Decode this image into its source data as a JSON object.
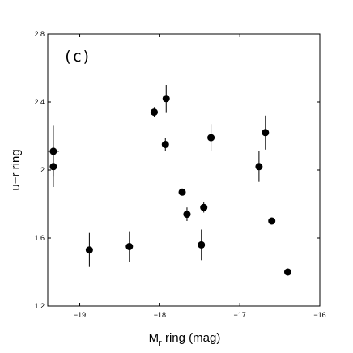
{
  "chart_data": {
    "type": "scatter",
    "panel_label": "(c)",
    "xlabel_main": "M",
    "xlabel_sub": "r",
    "xlabel_rest": " ring (mag)",
    "ylabel": "u−r ring",
    "xlim": [
      -19.4,
      -16
    ],
    "ylim": [
      1.2,
      2.8
    ],
    "x_ticks": [
      -19,
      -18,
      -17,
      -16
    ],
    "x_tick_labels": [
      "−19",
      "−18",
      "−17",
      "−16"
    ],
    "y_ticks": [
      1.2,
      1.6,
      2.0,
      2.4,
      2.8
    ],
    "y_tick_labels": [
      "1.2",
      "1.6",
      "2",
      "2.4",
      "2.8"
    ],
    "grid": false,
    "marker_color": "#000000",
    "points": [
      {
        "x": -19.33,
        "y": 2.11,
        "yerr": 0.15,
        "xerr": 0.07
      },
      {
        "x": -19.33,
        "y": 2.02,
        "yerr": 0.12,
        "xerr": 0.0
      },
      {
        "x": -18.88,
        "y": 1.53,
        "yerr": 0.1,
        "xerr": 0.0
      },
      {
        "x": -18.38,
        "y": 1.55,
        "yerr": 0.09,
        "xerr": 0.0
      },
      {
        "x": -18.07,
        "y": 2.34,
        "yerr": 0.03,
        "xerr": 0.0
      },
      {
        "x": -17.92,
        "y": 2.42,
        "yerr": 0.08,
        "xerr": 0.0
      },
      {
        "x": -17.93,
        "y": 2.15,
        "yerr": 0.04,
        "xerr": 0.0
      },
      {
        "x": -17.72,
        "y": 1.87,
        "yerr": 0.0,
        "xerr": 0.0
      },
      {
        "x": -17.66,
        "y": 1.74,
        "yerr": 0.04,
        "xerr": 0.0
      },
      {
        "x": -17.48,
        "y": 1.56,
        "yerr": 0.09,
        "xerr": 0.0
      },
      {
        "x": -17.45,
        "y": 1.78,
        "yerr": 0.03,
        "xerr": 0.0
      },
      {
        "x": -17.36,
        "y": 2.19,
        "yerr": 0.08,
        "xerr": 0.0
      },
      {
        "x": -16.76,
        "y": 2.02,
        "yerr": 0.09,
        "xerr": 0.0
      },
      {
        "x": -16.68,
        "y": 2.22,
        "yerr": 0.1,
        "xerr": 0.0
      },
      {
        "x": -16.6,
        "y": 1.7,
        "yerr": 0.0,
        "xerr": 0.04
      },
      {
        "x": -16.4,
        "y": 1.4,
        "yerr": 0.0,
        "xerr": 0.04
      }
    ]
  }
}
